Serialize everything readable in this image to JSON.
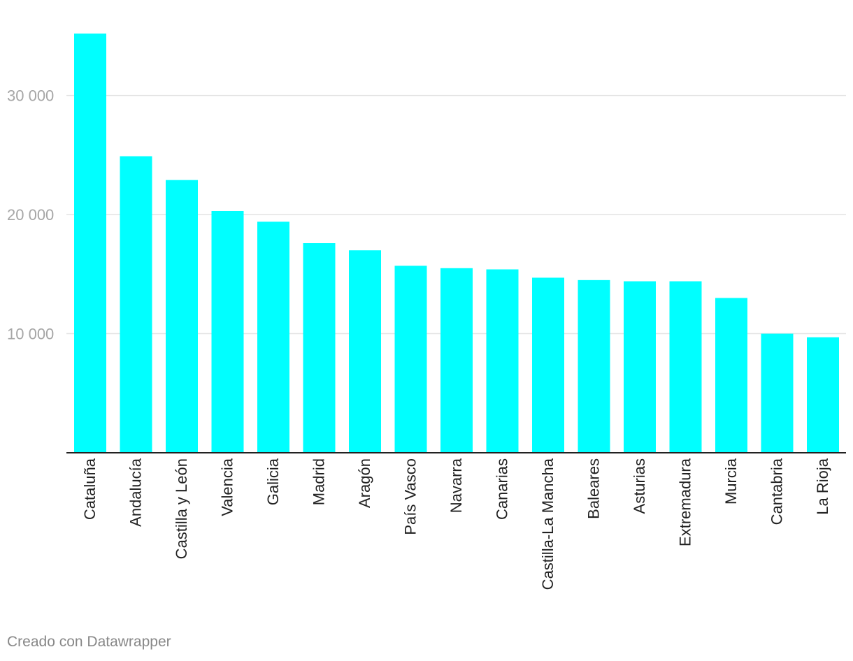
{
  "chart_data": {
    "type": "bar",
    "categories": [
      "Cataluña",
      "Andalucía",
      "Castilla y León",
      "Valencia",
      "Galicia",
      "Madrid",
      "Aragón",
      "País Vasco",
      "Navarra",
      "Canarias",
      "Castilla-La Mancha",
      "Baleares",
      "Asturias",
      "Extremadura",
      "Murcia",
      "Cantabria",
      "La Rioja"
    ],
    "values": [
      35200,
      24900,
      22900,
      20300,
      19400,
      17600,
      17000,
      15700,
      15500,
      15400,
      14700,
      14500,
      14400,
      14400,
      13000,
      10000,
      9700
    ],
    "ylim": [
      0,
      35200
    ],
    "yticks": [
      10000,
      20000,
      30000
    ],
    "ytick_labels": [
      "10 000",
      "20 000",
      "30 000"
    ],
    "grid": true,
    "bar_color": "#00ffff"
  },
  "footer": {
    "credit": "Creado con Datawrapper"
  }
}
